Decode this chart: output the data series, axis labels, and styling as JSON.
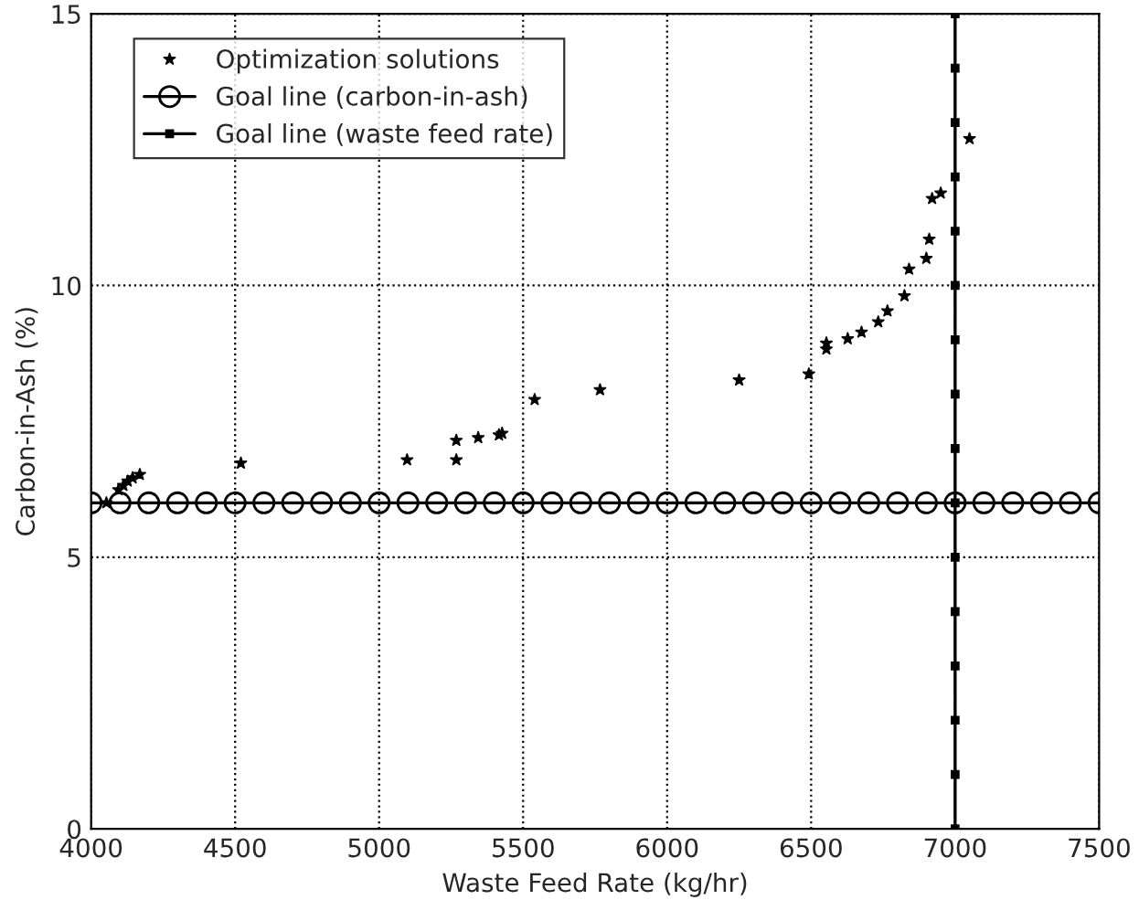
{
  "chart_data": {
    "type": "scatter",
    "xlabel": "Waste Feed Rate (kg/hr)",
    "ylabel": "Carbon-in-Ash (%)",
    "xlim": [
      4000,
      7500
    ],
    "xticks": [
      4000,
      4500,
      5000,
      5500,
      6000,
      6500,
      7000,
      7500
    ],
    "ylim": [
      0,
      15
    ],
    "yticks": [
      0,
      5,
      10,
      15
    ],
    "grid": true,
    "legend": "top left",
    "series": [
      {
        "name": "Optimization solutions",
        "marker": "star",
        "color": "#000000",
        "x": [
          4053,
          4095,
          4112,
          4127,
          4144,
          4169,
          4520,
          5097,
          5268,
          5268,
          5344,
          5416,
          5427,
          5540,
          5767,
          6250,
          6492,
          6553,
          6553,
          6627,
          6675,
          6733,
          6765,
          6824,
          6840,
          6900,
          6910,
          6920,
          6950,
          7050
        ],
        "values": [
          6.0,
          6.24,
          6.32,
          6.4,
          6.46,
          6.52,
          6.73,
          6.79,
          6.79,
          7.15,
          7.2,
          7.25,
          7.28,
          7.9,
          8.08,
          8.26,
          8.37,
          8.83,
          8.94,
          9.02,
          9.14,
          9.33,
          9.53,
          9.81,
          10.3,
          10.5,
          10.85,
          11.6,
          11.7,
          12.7
        ]
      },
      {
        "name": "Goal line (carbon-in-ash)",
        "type": "line",
        "marker": "circle",
        "color": "#000000",
        "x": [
          4000,
          4100,
          4200,
          4300,
          4400,
          4500,
          4600,
          4700,
          4800,
          4900,
          5000,
          5100,
          5200,
          5300,
          5400,
          5500,
          5600,
          5700,
          5800,
          5900,
          6000,
          6100,
          6200,
          6300,
          6400,
          6500,
          6600,
          6700,
          6800,
          6900,
          7000,
          7100,
          7200,
          7300,
          7400,
          7500
        ],
        "values": [
          6,
          6,
          6,
          6,
          6,
          6,
          6,
          6,
          6,
          6,
          6,
          6,
          6,
          6,
          6,
          6,
          6,
          6,
          6,
          6,
          6,
          6,
          6,
          6,
          6,
          6,
          6,
          6,
          6,
          6,
          6,
          6,
          6,
          6,
          6,
          6
        ]
      },
      {
        "name": "Goal line (waste feed rate)",
        "type": "line",
        "marker": "square",
        "color": "#000000",
        "x": [
          7000,
          7000,
          7000,
          7000,
          7000,
          7000,
          7000,
          7000,
          7000,
          7000,
          7000,
          7000,
          7000,
          7000,
          7000,
          7000
        ],
        "values": [
          0,
          1,
          2,
          3,
          4,
          5,
          6,
          7,
          8,
          9,
          10,
          11,
          12,
          13,
          14,
          15
        ]
      }
    ]
  }
}
